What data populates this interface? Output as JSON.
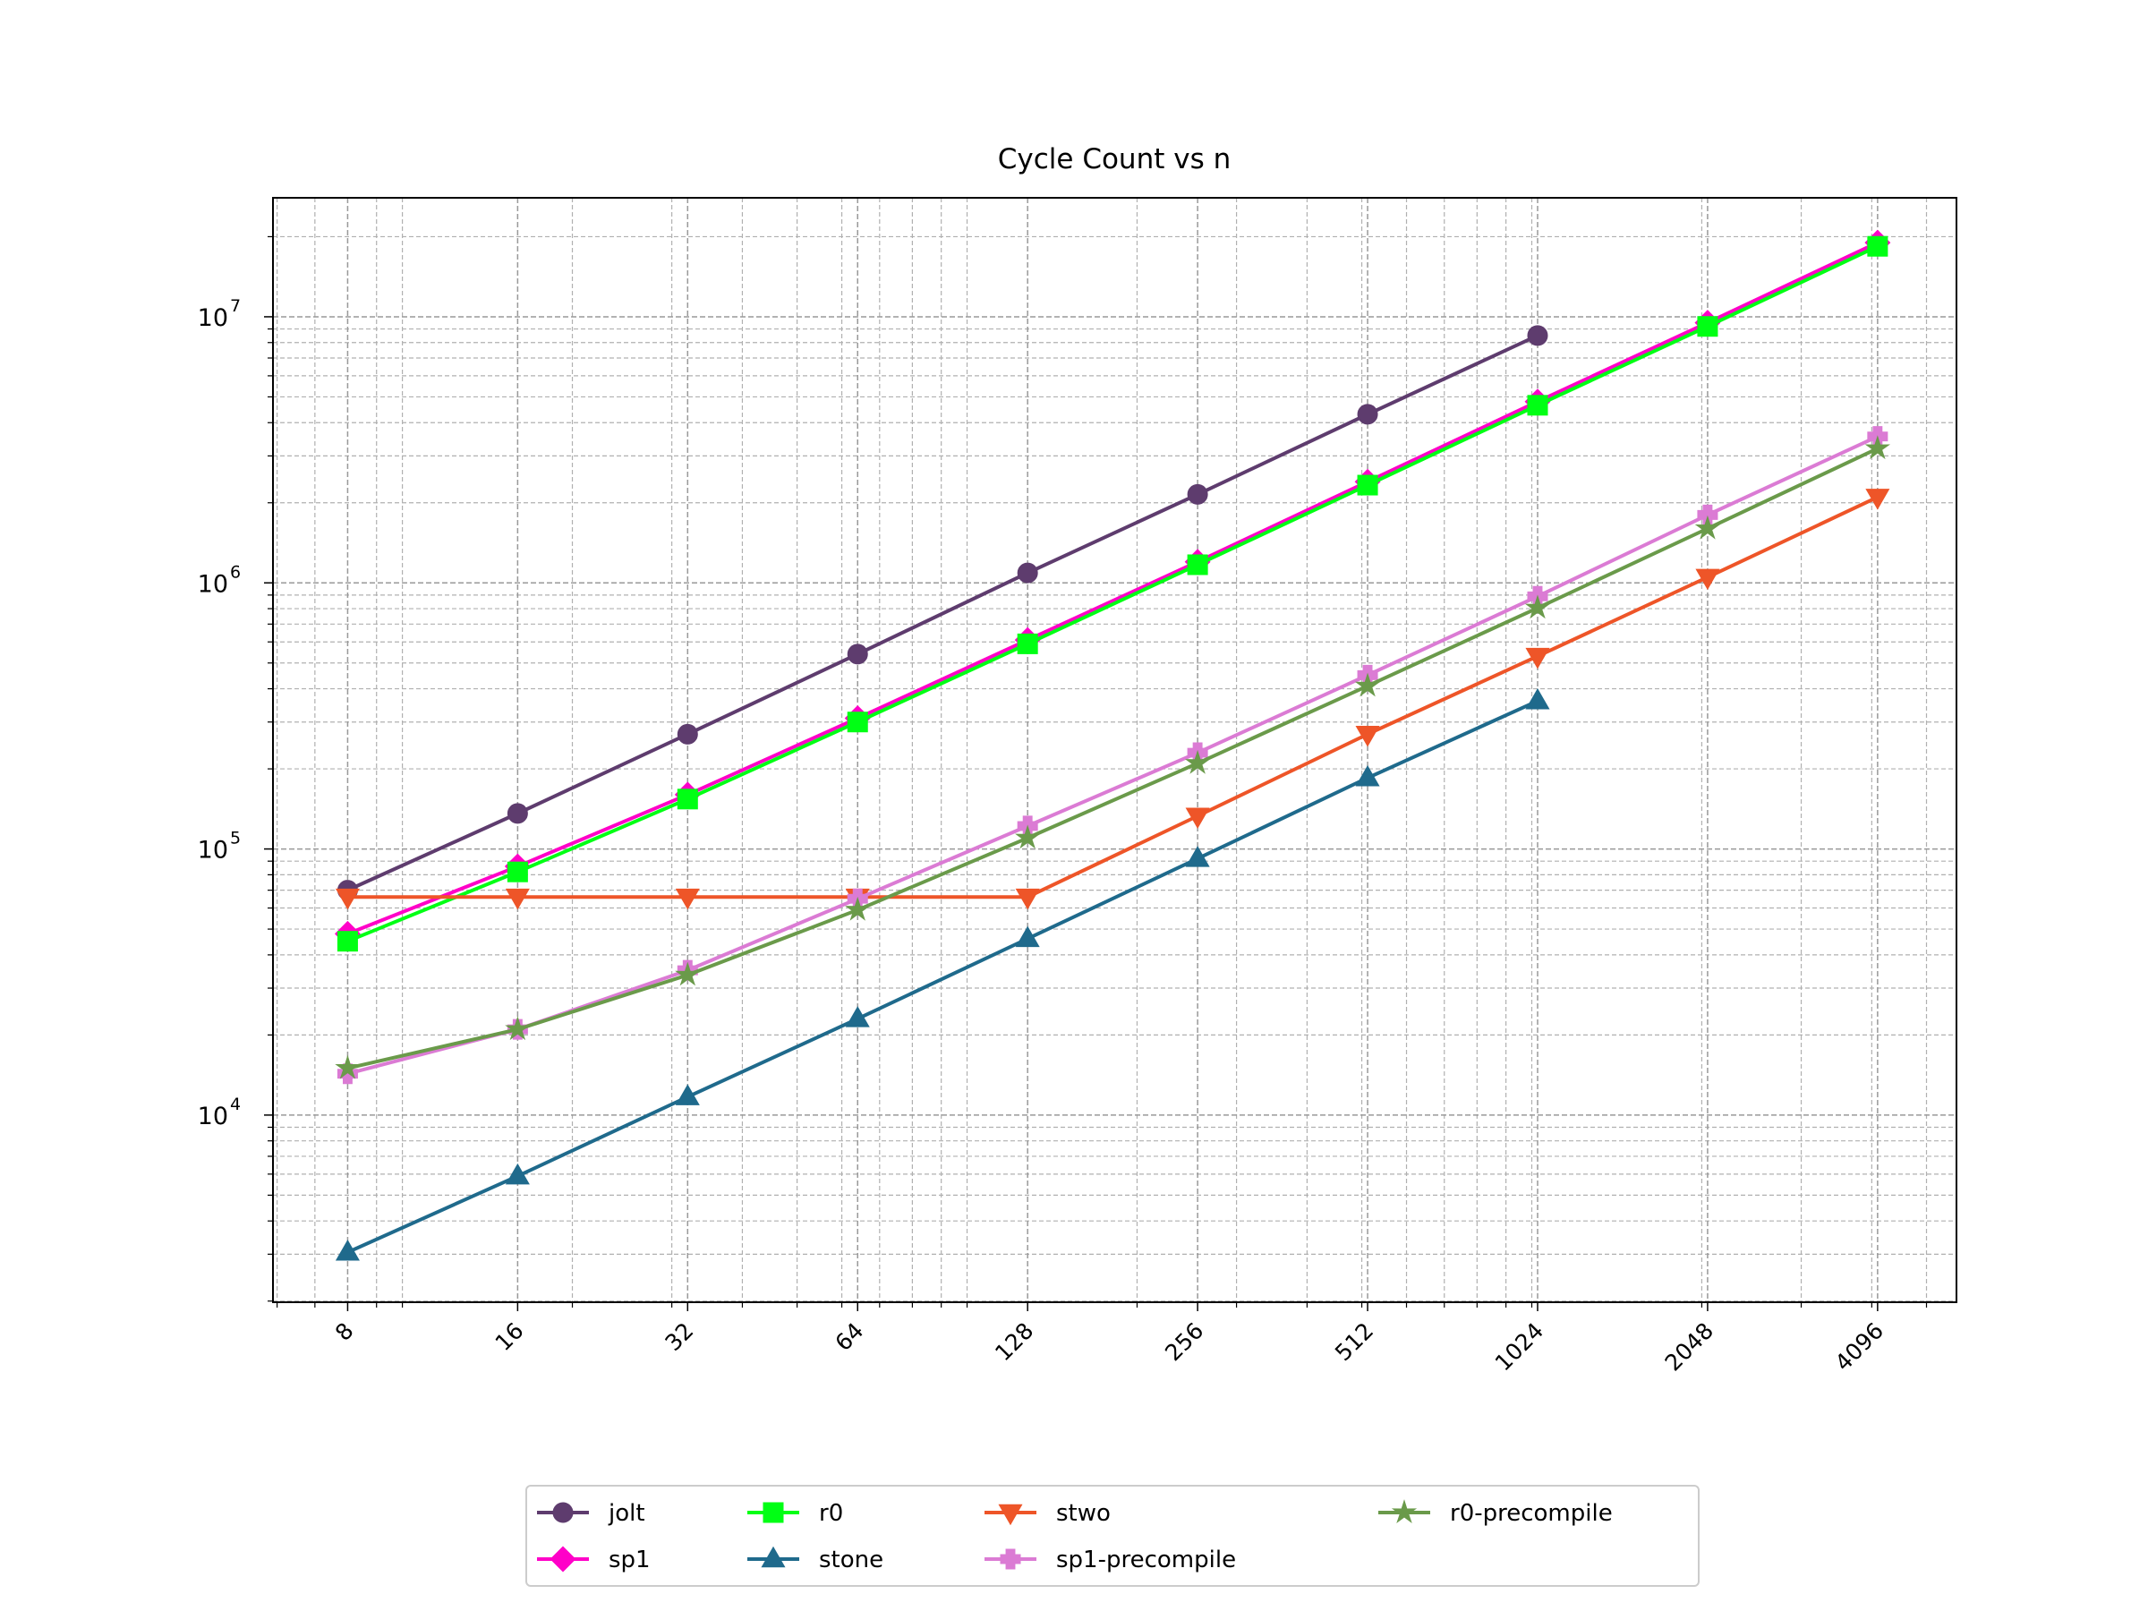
{
  "chart_data": {
    "type": "line",
    "title": "Cycle Count vs n",
    "xlabel": "",
    "ylabel": "",
    "xscale": "log2",
    "yscale": "log10",
    "xlim": [
      5.9,
      5650
    ],
    "ylim": [
      1980,
      28000000
    ],
    "grid": true,
    "legend_placement": "bottom-center-outside",
    "x": [
      8,
      16,
      32,
      64,
      128,
      256,
      512,
      1024,
      2048,
      4096
    ],
    "x_tick_labels": [
      "8",
      "16",
      "32",
      "64",
      "128",
      "256",
      "512",
      "1024",
      "2048",
      "4096"
    ],
    "y_tick_labels": [
      {
        "value": 10000,
        "base": "10",
        "exp": "4"
      },
      {
        "value": 100000,
        "base": "10",
        "exp": "5"
      },
      {
        "value": 1000000,
        "base": "10",
        "exp": "6"
      },
      {
        "value": 10000000,
        "base": "10",
        "exp": "7"
      }
    ],
    "series": [
      {
        "name": "jolt",
        "color": "#5e3c6e",
        "marker": "circle",
        "values": [
          70000,
          136000,
          270000,
          540000,
          1090000,
          2150000,
          4300000,
          8500000,
          null,
          null
        ]
      },
      {
        "name": "sp1",
        "color": "#ff00c8",
        "marker": "diamond",
        "values": [
          48000,
          86000,
          160000,
          310000,
          610000,
          1200000,
          2400000,
          4800000,
          9500000,
          19000000
        ]
      },
      {
        "name": "r0",
        "color": "#00ff14",
        "marker": "square",
        "values": [
          45000,
          82000,
          154000,
          300000,
          590000,
          1170000,
          2330000,
          4650000,
          9200000,
          18400000
        ]
      },
      {
        "name": "stone",
        "color": "#1f6a8c",
        "marker": "triangle-up",
        "values": [
          3050,
          5900,
          11700,
          23000,
          46000,
          92000,
          185000,
          360000,
          null,
          null
        ]
      },
      {
        "name": "stwo",
        "color": "#ee5528",
        "marker": "triangle-down",
        "values": [
          66000,
          66000,
          66000,
          66000,
          66000,
          133000,
          270000,
          530000,
          1050000,
          2100000
        ]
      },
      {
        "name": "sp1-precompile",
        "color": "#db7bd4",
        "marker": "plus",
        "values": [
          14300,
          21000,
          35000,
          65000,
          122000,
          230000,
          450000,
          890000,
          1800000,
          3550000
        ]
      },
      {
        "name": "r0-precompile",
        "color": "#6a9a4a",
        "marker": "star",
        "values": [
          15000,
          21000,
          33600,
          59000,
          110000,
          210000,
          410000,
          805000,
          1600000,
          3200000
        ]
      }
    ]
  }
}
